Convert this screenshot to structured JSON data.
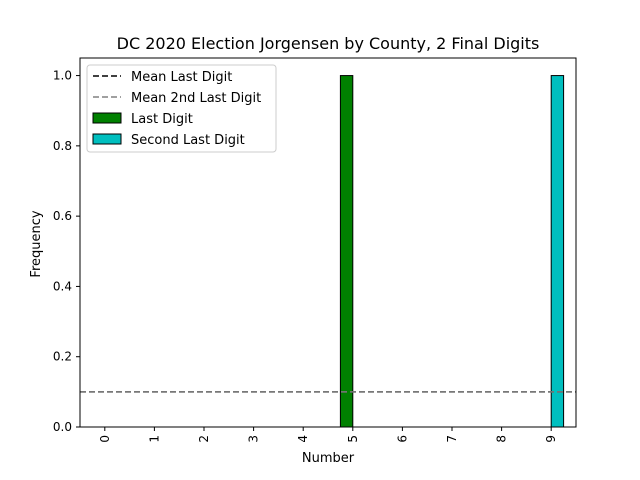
{
  "chart_data": {
    "type": "bar",
    "title": "DC 2020 Election Jorgensen by County, 2 Final Digits",
    "xlabel": "Number",
    "ylabel": "Frequency",
    "categories": [
      "0",
      "1",
      "2",
      "3",
      "4",
      "5",
      "6",
      "7",
      "8",
      "9"
    ],
    "ylim": [
      0,
      1.05
    ],
    "yticks": [
      "0.0",
      "0.2",
      "0.4",
      "0.6",
      "0.8",
      "1.0"
    ],
    "grid": false,
    "legend_position": "top-left",
    "series": [
      {
        "name": "Last Digit",
        "color": "#008000",
        "values": [
          0,
          0,
          0,
          0,
          0,
          1,
          0,
          0,
          0,
          0
        ]
      },
      {
        "name": "Second Last Digit",
        "color": "#00bfbf",
        "values": [
          0,
          0,
          0,
          0,
          0,
          0,
          0,
          0,
          0,
          1
        ]
      }
    ],
    "reference_lines": [
      {
        "name": "Mean Last Digit",
        "value": 0.1,
        "color": "#000000",
        "style": "dashed"
      },
      {
        "name": "Mean 2nd Last Digit",
        "value": 0.1,
        "color": "#808080",
        "style": "dashed"
      }
    ]
  }
}
